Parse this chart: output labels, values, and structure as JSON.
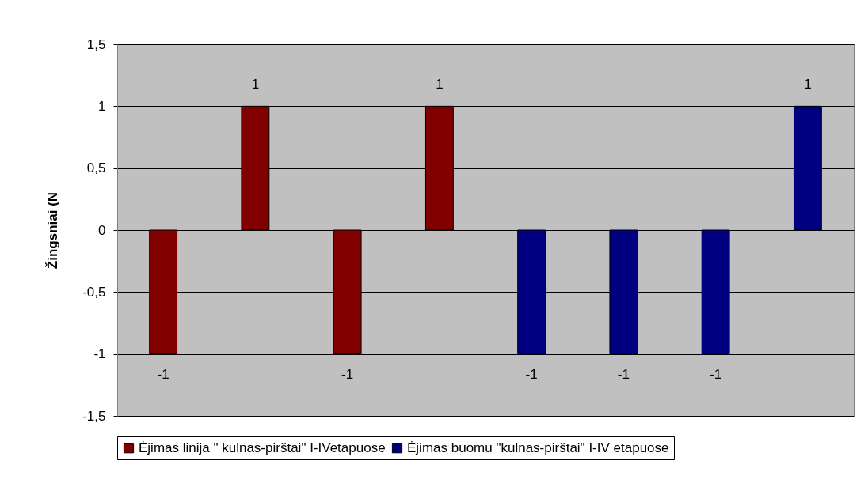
{
  "chart_data": {
    "type": "bar",
    "ylabel": "Žingsniai (N",
    "categories": [
      null,
      null,
      null,
      null,
      null,
      null,
      null,
      null
    ],
    "series": [
      {
        "name": "Ėjimas linija \" kulnas-pirštai\" I-IVetapuose",
        "color": "#800000",
        "values": [
          -1,
          1,
          -1,
          1,
          null,
          null,
          null,
          null
        ]
      },
      {
        "name": "Ėjimas buomu \"kulnas-pirštai\" I-IV etapuose",
        "color": "#000080",
        "values": [
          null,
          null,
          null,
          null,
          -1,
          -1,
          -1,
          1
        ]
      }
    ],
    "ylim": [
      -1.5,
      1.5
    ],
    "yticks": [
      {
        "value": -1.5,
        "label": "-1,5"
      },
      {
        "value": -1,
        "label": "-1"
      },
      {
        "value": -0.5,
        "label": "-0,5"
      },
      0,
      {
        "value": 0.5,
        "label": "0,5"
      },
      1,
      {
        "value": 1.5,
        "label": "1,5"
      }
    ],
    "grid": "y",
    "data_labels": true,
    "legend": "bottom",
    "tick_labels": "y"
  }
}
